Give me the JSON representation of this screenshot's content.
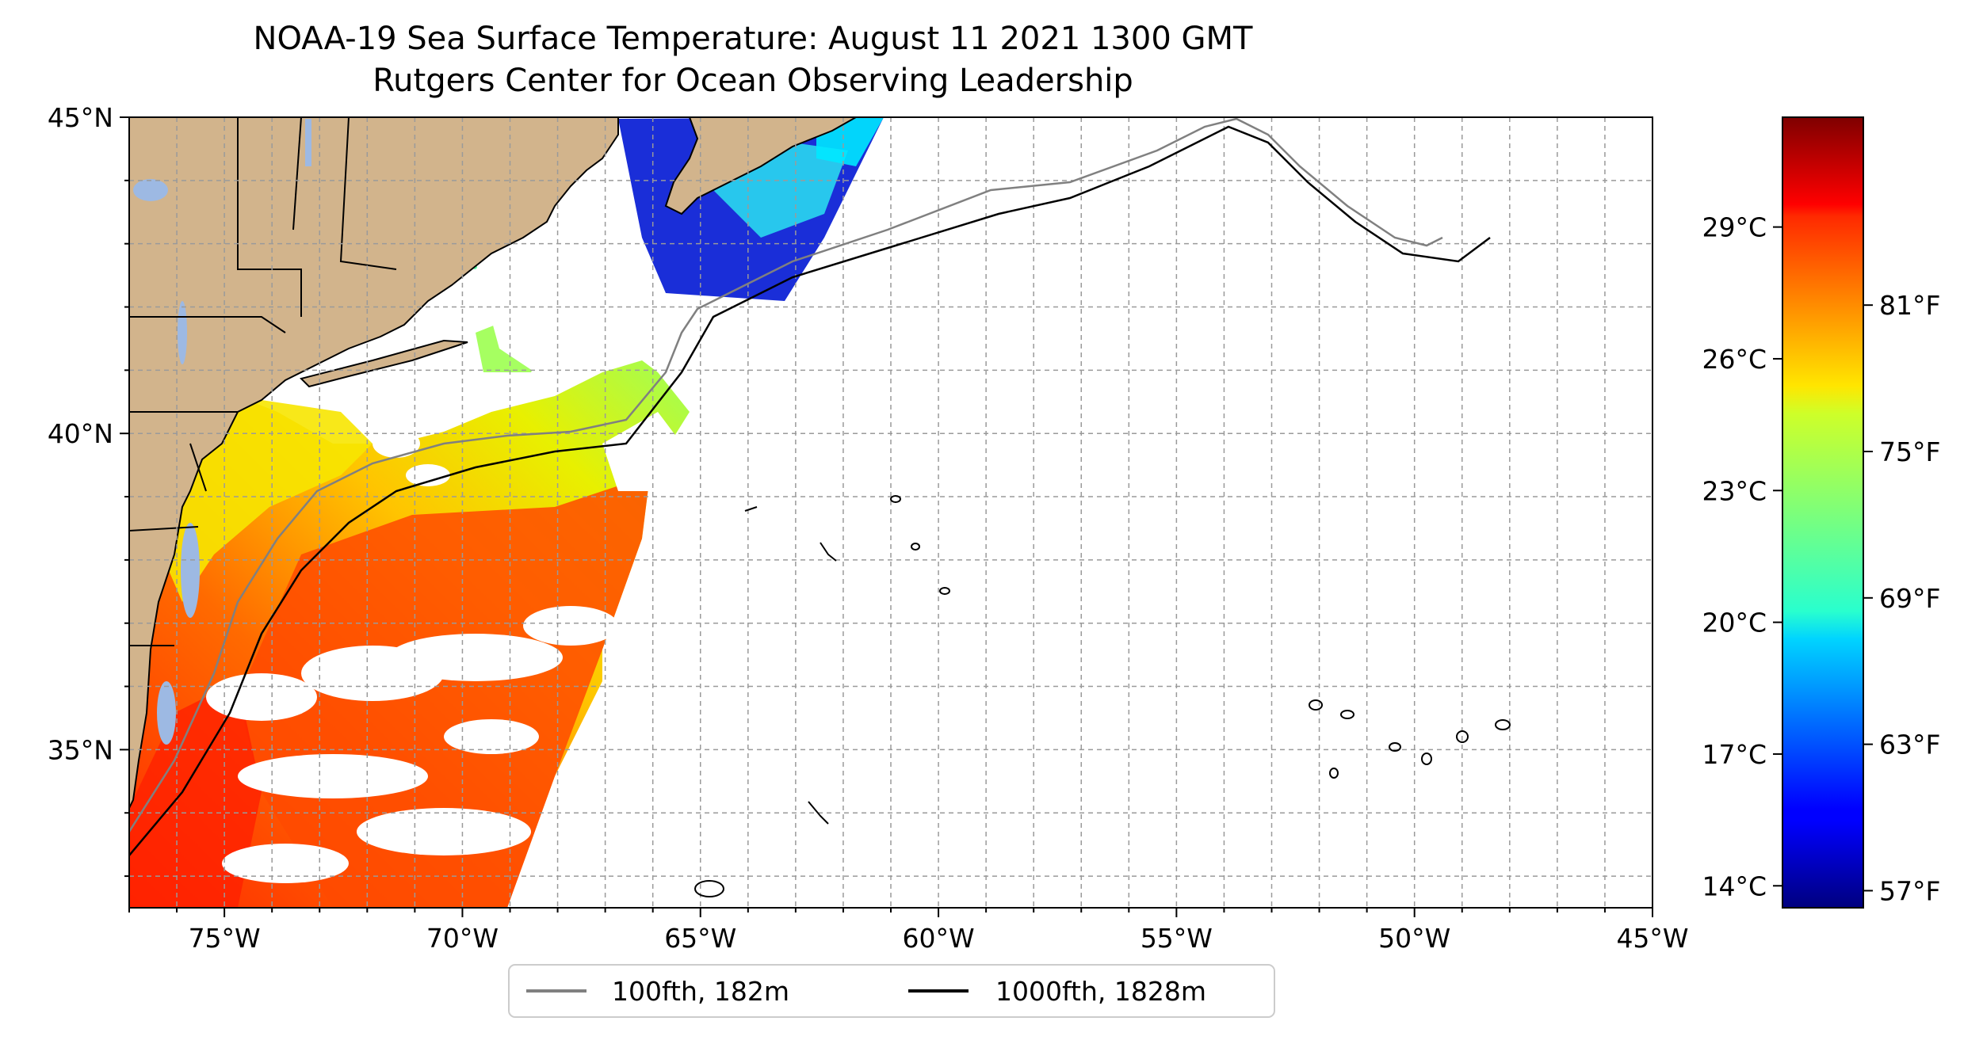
{
  "title": {
    "line1": "NOAA-19 Sea Surface Temperature: August 11 2021 1300 GMT",
    "line2": "Rutgers Center for Ocean Observing Leadership"
  },
  "map": {
    "lon_range": [
      -77,
      -45
    ],
    "lat_range": [
      32.5,
      45
    ],
    "lon_ticks": [
      {
        "value": -75,
        "label": "75°W"
      },
      {
        "value": -70,
        "label": "70°W"
      },
      {
        "value": -65,
        "label": "65°W"
      },
      {
        "value": -60,
        "label": "60°W"
      },
      {
        "value": -55,
        "label": "55°W"
      },
      {
        "value": -50,
        "label": "50°W"
      },
      {
        "value": -45,
        "label": "45°W"
      }
    ],
    "lat_ticks": [
      {
        "value": 45,
        "label": "45°N"
      },
      {
        "value": 40,
        "label": "40°N"
      },
      {
        "value": 35,
        "label": "35°N"
      }
    ],
    "grid": true,
    "land_color": "#d2b48c",
    "lake_color": "#9db9e3"
  },
  "colorbar": {
    "colormap": "jet",
    "range_c": [
      13.5,
      31.5
    ],
    "celsius_ticks": [
      {
        "value": 29,
        "label": "29°C"
      },
      {
        "value": 26,
        "label": "26°C"
      },
      {
        "value": 23,
        "label": "23°C"
      },
      {
        "value": 20,
        "label": "20°C"
      },
      {
        "value": 17,
        "label": "17°C"
      },
      {
        "value": 14,
        "label": "14°C"
      }
    ],
    "fahrenheit_ticks": [
      {
        "value": 81,
        "label": "81°F"
      },
      {
        "value": 75,
        "label": "75°F"
      },
      {
        "value": 69,
        "label": "69°F"
      },
      {
        "value": 63,
        "label": "63°F"
      },
      {
        "value": 57,
        "label": "57°F"
      }
    ]
  },
  "legend": {
    "placement": "bottom-center",
    "items": [
      {
        "label": "100fth, 182m",
        "color": "#808080"
      },
      {
        "label": "1000fth, 1828m",
        "color": "#000000"
      }
    ]
  }
}
